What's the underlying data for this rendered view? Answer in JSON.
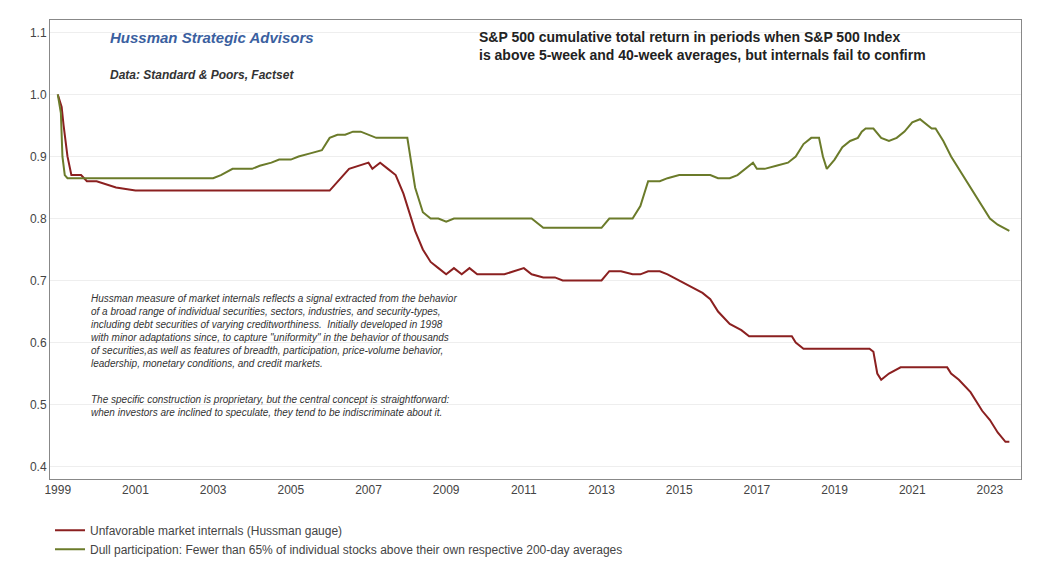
{
  "chart_data": {
    "type": "line",
    "title": "S&P 500 cumulative total return in periods when S&P 500 Index\nis above 5-week and 40-week averages, but internals fail to confirm",
    "subtitle": [
      "Hussman Strategic Advisors",
      "Data: Standard & Poors, Factset"
    ],
    "annotations": [
      "Hussman measure of market internals reflects a signal extracted from the behavior\nof a broad range of individual securities, sectors, industries, and security-types,\nincluding debt securities of varying creditworthiness.  Initially developed in 1998\nwith minor adaptations since, to capture \"uniformity\" in the behavior of thousands\nof securities,as well as features of breadth, participation, price-volume behavior,\nleadership, monetary conditions, and credit markets.",
      "The specific construction is proprietary, but the central concept is straightforward:\nwhen investors are inclined to speculate, they tend to be indiscriminate about it."
    ],
    "xlim": [
      1998.8,
      2023.8
    ],
    "xticks": [
      1999,
      2001,
      2003,
      2005,
      2007,
      2009,
      2011,
      2013,
      2015,
      2017,
      2019,
      2021,
      2023
    ],
    "ylim": [
      0.38,
      1.12
    ],
    "yticks": [
      0.4,
      0.5,
      0.6,
      0.7,
      0.8,
      0.9,
      {
        "value": 1.0,
        "label": "1.0"
      },
      1.1
    ],
    "grid": true,
    "legend": "bottom",
    "series": [
      {
        "name": "Unfavorable market internals (Hussman gauge)",
        "color": "#8B2020",
        "x": [
          1999.0,
          1999.1,
          1999.15,
          1999.25,
          1999.35,
          1999.6,
          1999.75,
          2000.0,
          2000.5,
          2001.0,
          2001.5,
          2002.0,
          2002.5,
          2003.0,
          2003.5,
          2004.0,
          2004.5,
          2005.0,
          2005.5,
          2006.0,
          2006.5,
          2007.0,
          2007.1,
          2007.3,
          2007.5,
          2007.7,
          2007.9,
          2008.0,
          2008.2,
          2008.4,
          2008.6,
          2008.8,
          2009.0,
          2009.2,
          2009.4,
          2009.6,
          2009.8,
          2010.0,
          2010.2,
          2010.5,
          2011.0,
          2011.2,
          2011.5,
          2011.8,
          2012.0,
          2012.5,
          2013.0,
          2013.2,
          2013.5,
          2013.8,
          2014.0,
          2014.2,
          2014.5,
          2014.7,
          2015.0,
          2015.3,
          2015.6,
          2015.8,
          2016.0,
          2016.3,
          2016.6,
          2016.8,
          2017.0,
          2017.3,
          2017.6,
          2017.9,
          2018.0,
          2018.2,
          2018.5,
          2018.7,
          2018.9,
          2019.0,
          2019.3,
          2019.6,
          2019.9,
          2020.0,
          2020.1,
          2020.2,
          2020.4,
          2020.7,
          2021.0,
          2021.3,
          2021.6,
          2021.9,
          2022.0,
          2022.2,
          2022.5,
          2022.8,
          2023.0,
          2023.2,
          2023.4,
          2023.5
        ],
        "values": [
          1.0,
          0.98,
          0.95,
          0.9,
          0.87,
          0.87,
          0.86,
          0.86,
          0.85,
          0.845,
          0.845,
          0.845,
          0.845,
          0.845,
          0.845,
          0.845,
          0.845,
          0.845,
          0.845,
          0.845,
          0.88,
          0.89,
          0.88,
          0.89,
          0.88,
          0.87,
          0.84,
          0.82,
          0.78,
          0.75,
          0.73,
          0.72,
          0.71,
          0.72,
          0.71,
          0.72,
          0.71,
          0.71,
          0.71,
          0.71,
          0.72,
          0.71,
          0.705,
          0.705,
          0.7,
          0.7,
          0.7,
          0.715,
          0.715,
          0.71,
          0.71,
          0.715,
          0.715,
          0.71,
          0.7,
          0.69,
          0.68,
          0.67,
          0.65,
          0.63,
          0.62,
          0.61,
          0.61,
          0.61,
          0.61,
          0.61,
          0.6,
          0.59,
          0.59,
          0.59,
          0.59,
          0.59,
          0.59,
          0.59,
          0.59,
          0.585,
          0.55,
          0.54,
          0.55,
          0.56,
          0.56,
          0.56,
          0.56,
          0.56,
          0.55,
          0.54,
          0.52,
          0.49,
          0.475,
          0.455,
          0.44,
          0.44
        ]
      },
      {
        "name": "Dull participation: Fewer than 65% of individual stocks above their own respective 200-day averages",
        "color": "#6B7B2A",
        "x": [
          1999.0,
          1999.08,
          1999.12,
          1999.18,
          1999.25,
          1999.4,
          1999.6,
          1999.8,
          2000.0,
          2000.3,
          2000.6,
          2001.0,
          2001.5,
          2002.0,
          2002.5,
          2003.0,
          2003.2,
          2003.5,
          2004.0,
          2004.2,
          2004.5,
          2004.7,
          2005.0,
          2005.2,
          2005.5,
          2005.8,
          2006.0,
          2006.2,
          2006.4,
          2006.6,
          2006.8,
          2007.0,
          2007.2,
          2007.4,
          2007.6,
          2007.8,
          2008.0,
          2008.2,
          2008.4,
          2008.6,
          2008.8,
          2009.0,
          2009.2,
          2009.4,
          2009.6,
          2009.8,
          2010.0,
          2010.2,
          2010.5,
          2010.8,
          2011.0,
          2011.2,
          2011.5,
          2011.7,
          2012.0,
          2012.3,
          2012.6,
          2013.0,
          2013.2,
          2013.5,
          2013.8,
          2014.0,
          2014.2,
          2014.5,
          2014.7,
          2015.0,
          2015.2,
          2015.5,
          2015.8,
          2016.0,
          2016.1,
          2016.3,
          2016.5,
          2016.7,
          2016.9,
          2017.0,
          2017.2,
          2017.5,
          2017.8,
          2018.0,
          2018.2,
          2018.4,
          2018.6,
          2018.7,
          2018.8,
          2019.0,
          2019.2,
          2019.4,
          2019.6,
          2019.7,
          2019.8,
          2020.0,
          2020.2,
          2020.4,
          2020.6,
          2020.8,
          2021.0,
          2021.2,
          2021.4,
          2021.5,
          2021.6,
          2021.8,
          2022.0,
          2022.2,
          2022.4,
          2022.6,
          2022.8,
          2023.0,
          2023.2,
          2023.5
        ],
        "values": [
          1.0,
          0.97,
          0.9,
          0.87,
          0.865,
          0.865,
          0.865,
          0.865,
          0.865,
          0.865,
          0.865,
          0.865,
          0.865,
          0.865,
          0.865,
          0.865,
          0.87,
          0.88,
          0.88,
          0.885,
          0.89,
          0.895,
          0.895,
          0.9,
          0.905,
          0.91,
          0.93,
          0.935,
          0.935,
          0.94,
          0.94,
          0.935,
          0.93,
          0.93,
          0.93,
          0.93,
          0.93,
          0.85,
          0.81,
          0.8,
          0.8,
          0.795,
          0.8,
          0.8,
          0.8,
          0.8,
          0.8,
          0.8,
          0.8,
          0.8,
          0.8,
          0.8,
          0.785,
          0.785,
          0.785,
          0.785,
          0.785,
          0.785,
          0.8,
          0.8,
          0.8,
          0.82,
          0.86,
          0.86,
          0.865,
          0.87,
          0.87,
          0.87,
          0.87,
          0.865,
          0.865,
          0.865,
          0.87,
          0.88,
          0.89,
          0.88,
          0.88,
          0.885,
          0.89,
          0.9,
          0.92,
          0.93,
          0.93,
          0.9,
          0.88,
          0.895,
          0.915,
          0.925,
          0.93,
          0.94,
          0.945,
          0.945,
          0.93,
          0.925,
          0.93,
          0.94,
          0.955,
          0.96,
          0.95,
          0.945,
          0.945,
          0.925,
          0.9,
          0.88,
          0.86,
          0.84,
          0.82,
          0.8,
          0.79,
          0.78
        ]
      }
    ]
  }
}
